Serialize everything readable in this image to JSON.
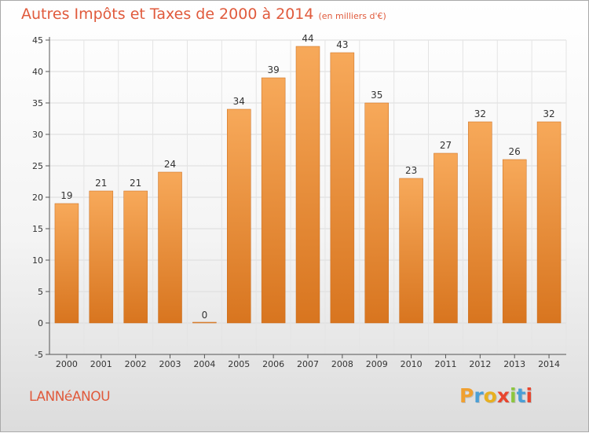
{
  "header": {
    "title": "Autres Impôts et Taxes de 2000 à 2014",
    "subtitle": "(en milliers d'€)"
  },
  "footer": {
    "commune": "LANNéANOU",
    "brand": "Proxiti"
  },
  "colors": {
    "title": "#e05a3c",
    "bar_light": "#f7a95a",
    "bar_dark": "#d8751f",
    "brand_letters": [
      "#f0a030",
      "#4b9fd6",
      "#e8b020",
      "#e8452e",
      "#8dc63f",
      "#4b9fd6",
      "#e8452e"
    ]
  },
  "chart_data": {
    "type": "bar",
    "categories": [
      "2000",
      "2001",
      "2002",
      "2003",
      "2004",
      "2005",
      "2006",
      "2007",
      "2008",
      "2009",
      "2010",
      "2011",
      "2012",
      "2013",
      "2014"
    ],
    "values": [
      19,
      21,
      21,
      24,
      0,
      34,
      39,
      44,
      43,
      35,
      23,
      27,
      32,
      26,
      32
    ],
    "title": "Autres Impôts et Taxes de 2000 à 2014",
    "subtitle": "(en milliers d'€)",
    "xlabel": "",
    "ylabel": "",
    "ylim": [
      -5,
      45
    ],
    "yticks": [
      -5,
      0,
      5,
      10,
      15,
      20,
      25,
      30,
      35,
      40,
      45
    ],
    "grid": true,
    "legend": "none"
  }
}
